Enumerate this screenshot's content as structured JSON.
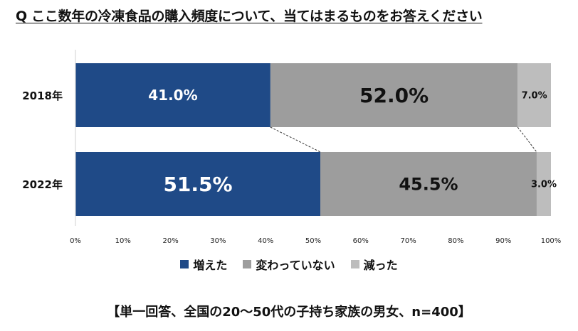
{
  "title": "Q ここ数年の冷凍食品の購入頻度について、当てはまるものをお答えください",
  "footnote": "【単一回答、全国の20～50代の子持ち家族の男女、n=400】",
  "colors": {
    "increased": "#1f4a87",
    "unchanged": "#9d9d9d",
    "decreased": "#bdbdbd"
  },
  "chart_data": {
    "type": "bar",
    "orientation": "horizontal",
    "stacked": true,
    "categories": [
      "2018年",
      "2022年"
    ],
    "series": [
      {
        "name": "増えた",
        "values": [
          41.0,
          51.5
        ],
        "labels": [
          "41.0%",
          "51.5%"
        ]
      },
      {
        "name": "変わっていない",
        "values": [
          52.0,
          45.5
        ],
        "labels": [
          "52.0%",
          "45.5%"
        ]
      },
      {
        "name": "減った",
        "values": [
          7.0,
          3.0
        ],
        "labels": [
          "7.0%",
          "3.0%"
        ]
      }
    ],
    "xlim": [
      0,
      100
    ],
    "xticks": [
      "0%",
      "10%",
      "20%",
      "30%",
      "40%",
      "50%",
      "60%",
      "70%",
      "80%",
      "90%",
      "100%"
    ],
    "grid": false,
    "legend_position": "bottom",
    "connector_lines": true
  }
}
